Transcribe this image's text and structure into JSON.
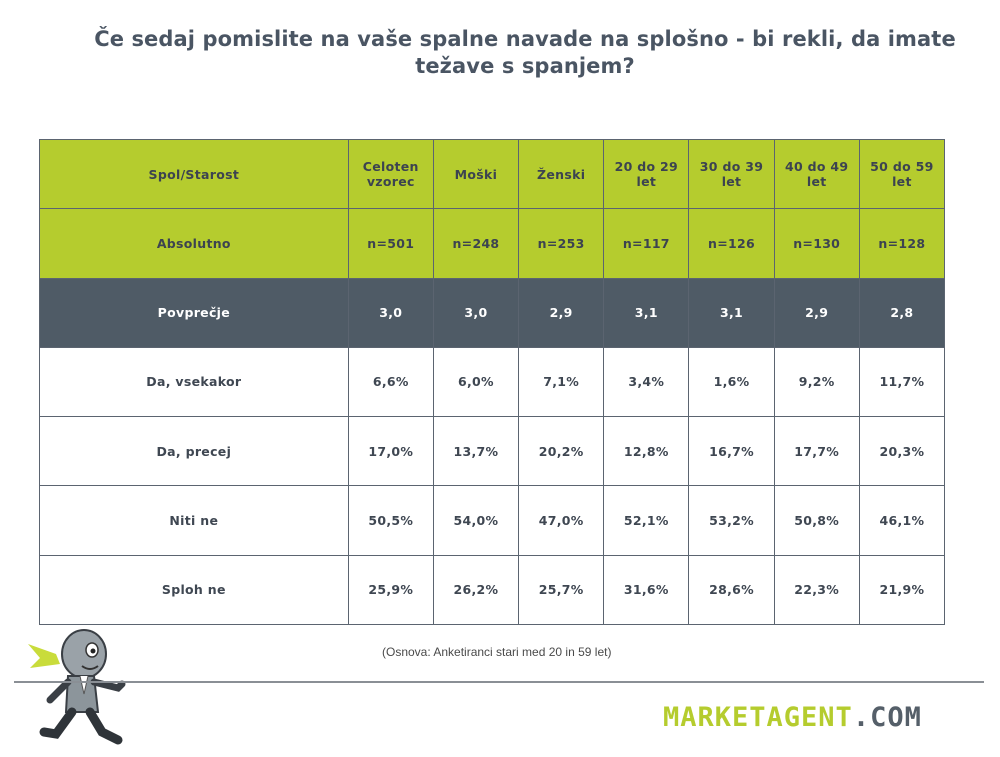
{
  "title_line1": "Če sedaj pomislite na vaše spalne navade na splošno - bi rekli, da imate",
  "title_line2": "težave s spanjem?",
  "footnote": "(Osnova: Anketiranci stari med 20 in 59 let)",
  "logo": {
    "part1": "MARKETAGENT",
    "part2": ".COM"
  },
  "colors": {
    "green": "#b5cc2e",
    "dark": "#4f5b66",
    "text": "#4a5563"
  },
  "chart_data": {
    "type": "table",
    "columns": [
      "Spol/Starost",
      "Celoten vzorec",
      "Moški",
      "Ženski",
      "20 do 29 let",
      "30 do 39 let",
      "40 do 49 let",
      "50 do 59 let"
    ],
    "rows": [
      [
        "Absolutno",
        "n=501",
        "n=248",
        "n=253",
        "n=117",
        "n=126",
        "n=130",
        "n=128"
      ],
      [
        "Povprečje",
        "3,0",
        "3,0",
        "2,9",
        "3,1",
        "3,1",
        "2,9",
        "2,8"
      ],
      [
        "Da, vsekakor",
        "6,6%",
        "6,0%",
        "7,1%",
        "3,4%",
        "1,6%",
        "9,2%",
        "11,7%"
      ],
      [
        "Da, precej",
        "17,0%",
        "13,7%",
        "20,2%",
        "12,8%",
        "16,7%",
        "17,7%",
        "20,3%"
      ],
      [
        "Niti ne",
        "50,5%",
        "54,0%",
        "47,0%",
        "52,1%",
        "53,2%",
        "50,8%",
        "46,1%"
      ],
      [
        "Sploh ne",
        "25,9%",
        "26,2%",
        "25,7%",
        "31,6%",
        "28,6%",
        "22,3%",
        "21,9%"
      ]
    ]
  }
}
